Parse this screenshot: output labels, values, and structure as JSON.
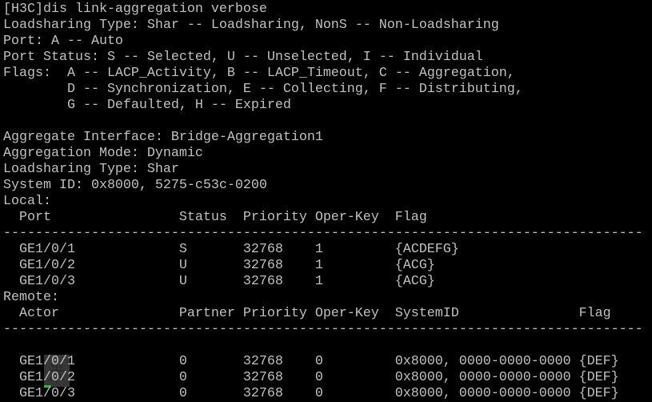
{
  "terminal": {
    "lines": [
      "[H3C]dis link-aggregation verbose",
      "Loadsharing Type: Shar -- Loadsharing, NonS -- Non-Loadsharing",
      "Port: A -- Auto",
      "Port Status: S -- Selected, U -- Unselected, I -- Individual",
      "Flags:  A -- LACP_Activity, B -- LACP_Timeout, C -- Aggregation,",
      "        D -- Synchronization, E -- Collecting, F -- Distributing,",
      "        G -- Defaulted, H -- Expired",
      "",
      "Aggregate Interface: Bridge-Aggregation1",
      "Aggregation Mode: Dynamic",
      "Loadsharing Type: Shar",
      "System ID: 0x8000, 5275-c53c-0200",
      "Local:",
      "  Port                Status  Priority Oper-Key  Flag",
      "--------------------------------------------------------------------------------",
      "  GE1/0/1             S       32768    1         {ACDEFG}",
      "  GE1/0/2             U       32768    1         {ACG}",
      "  GE1/0/3             U       32768    1         {ACG}",
      "Remote:",
      "  Actor               Partner Priority Oper-Key  SystemID               Flag",
      "--------------------------------------------------------------------------------",
      "",
      "  GE1/0/1             0       32768    0         0x8000, 0000-0000-0000 {DEF}",
      "  GE1/0/2             0       32768    0         0x8000, 0000-0000-0000 {DEF}",
      "  GE1/0/3             0       32768    0         0x8000, 0000-0000-0000 {DEF}"
    ]
  },
  "colors": {
    "background": "#000000",
    "text": "#c0c0c0",
    "cursor": "#00e000"
  },
  "watermark": {
    "glyph": "米"
  }
}
